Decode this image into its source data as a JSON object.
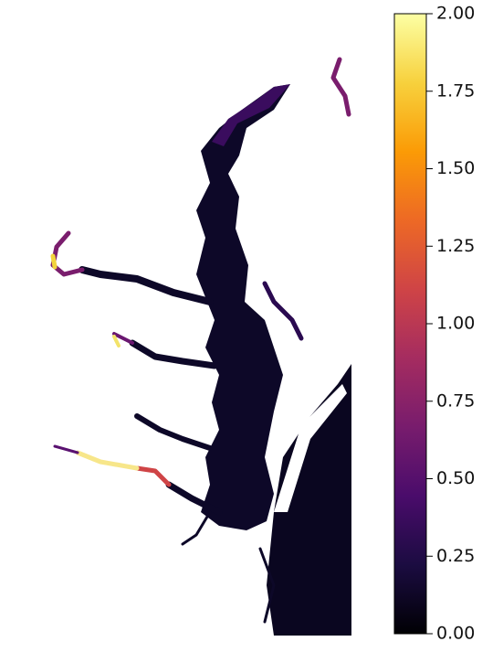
{
  "colorbar": {
    "colormap": "inferno",
    "lim": [
      0,
      2
    ],
    "ticks": [
      {
        "value": 0,
        "label": "0.00"
      },
      {
        "value": 0.25,
        "label": "0.25"
      },
      {
        "value": 0.5,
        "label": "0.50"
      },
      {
        "value": 0.75,
        "label": "0.75"
      },
      {
        "value": 1,
        "label": "1.00"
      },
      {
        "value": 1.25,
        "label": "1.25"
      },
      {
        "value": 1.5,
        "label": "1.50"
      },
      {
        "value": 1.75,
        "label": "1.75"
      },
      {
        "value": 2,
        "label": "2.00"
      }
    ]
  }
}
